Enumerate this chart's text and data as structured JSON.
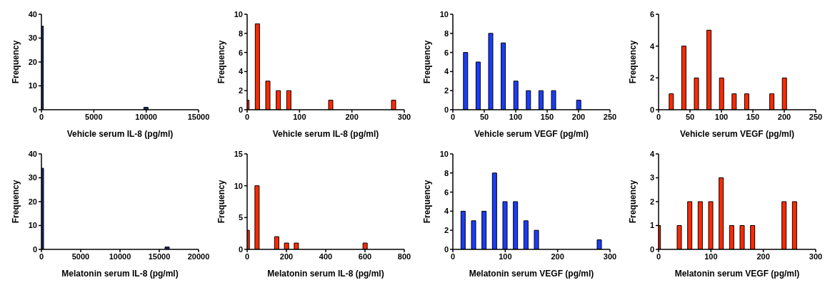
{
  "chart_data": [
    {
      "type": "bar",
      "xlabel": "Vehicle serum IL-8 (pg/ml)",
      "ylabel": "Frequency",
      "x": [
        0,
        10000
      ],
      "values": [
        35,
        1
      ],
      "color": "#1c2a6e",
      "xlim": [
        0,
        15000
      ],
      "xticks": [
        0,
        5000,
        10000,
        15000
      ],
      "ylim": [
        0,
        40
      ],
      "yticks": [
        0,
        10,
        20,
        30,
        40
      ],
      "grid": false,
      "legend": false
    },
    {
      "type": "bar",
      "xlabel": "Vehicle serum IL-8 (pg/ml)",
      "ylabel": "Frequency",
      "x": [
        0,
        20,
        40,
        60,
        80,
        160,
        280
      ],
      "values": [
        1,
        9,
        3,
        2,
        2,
        1,
        1
      ],
      "color": "#ff2a00",
      "xlim": [
        0,
        300
      ],
      "xticks": [
        0,
        100,
        200,
        300
      ],
      "ylim": [
        0,
        10
      ],
      "yticks": [
        0,
        2,
        4,
        6,
        8,
        10
      ],
      "grid": false,
      "legend": false
    },
    {
      "type": "bar",
      "xlabel": "Vehicle serum VEGF (pg/ml)",
      "ylabel": "Frequency",
      "x": [
        20,
        40,
        60,
        80,
        100,
        120,
        140,
        160,
        200
      ],
      "values": [
        6,
        5,
        8,
        7,
        3,
        2,
        2,
        2,
        1
      ],
      "color": "#1a3cff",
      "xlim": [
        0,
        250
      ],
      "xticks": [
        0,
        50,
        100,
        150,
        200,
        250
      ],
      "ylim": [
        0,
        10
      ],
      "yticks": [
        0,
        2,
        4,
        6,
        8,
        10
      ],
      "grid": false,
      "legend": false
    },
    {
      "type": "bar",
      "xlabel": "Vehicle serum VEGF (pg/ml)",
      "ylabel": "Frequency",
      "x": [
        20,
        40,
        60,
        80,
        100,
        120,
        140,
        180,
        200
      ],
      "values": [
        1,
        4,
        2,
        5,
        2,
        1,
        1,
        1,
        2
      ],
      "color": "#ff2a00",
      "xlim": [
        0,
        250
      ],
      "xticks": [
        0,
        50,
        100,
        150,
        200,
        250
      ],
      "ylim": [
        0,
        6
      ],
      "yticks": [
        0,
        2,
        4,
        6
      ],
      "grid": false,
      "legend": false
    },
    {
      "type": "bar",
      "xlabel": "Melatonin serum IL-8 (pg/ml)",
      "ylabel": "Frequency",
      "x": [
        0,
        16000
      ],
      "values": [
        34,
        1
      ],
      "color": "#1c2a6e",
      "xlim": [
        0,
        20000
      ],
      "xticks": [
        0,
        5000,
        10000,
        15000,
        20000
      ],
      "ylim": [
        0,
        40
      ],
      "yticks": [
        0,
        10,
        20,
        30,
        40
      ],
      "grid": false,
      "legend": false
    },
    {
      "type": "bar",
      "xlabel": "Melatonin serum IL-8 (pg/ml)",
      "ylabel": "Frequency",
      "x": [
        0,
        50,
        150,
        200,
        250,
        600
      ],
      "values": [
        3,
        10,
        2,
        1,
        1,
        1
      ],
      "color": "#ff2a00",
      "xlim": [
        0,
        800
      ],
      "xticks": [
        0,
        200,
        400,
        600,
        800
      ],
      "ylim": [
        0,
        15
      ],
      "yticks": [
        0,
        5,
        10,
        15
      ],
      "grid": false,
      "legend": false
    },
    {
      "type": "bar",
      "xlabel": "Melatonin serum VEGF (pg/ml)",
      "ylabel": "Frequency",
      "x": [
        20,
        40,
        60,
        80,
        100,
        120,
        140,
        160,
        280
      ],
      "values": [
        4,
        3,
        4,
        8,
        5,
        5,
        3,
        2,
        1
      ],
      "color": "#1a3cff",
      "xlim": [
        0,
        300
      ],
      "xticks": [
        0,
        100,
        200,
        300
      ],
      "ylim": [
        0,
        10
      ],
      "yticks": [
        0,
        2,
        4,
        6,
        8,
        10
      ],
      "grid": false,
      "legend": false
    },
    {
      "type": "bar",
      "xlabel": "Melatonin serum VEGF (pg/ml)",
      "ylabel": "Frequency",
      "x": [
        0,
        40,
        60,
        80,
        100,
        120,
        140,
        160,
        180,
        240,
        260
      ],
      "values": [
        1,
        1,
        2,
        2,
        2,
        3,
        1,
        1,
        1,
        2,
        2
      ],
      "color": "#ff2a00",
      "xlim": [
        0,
        300
      ],
      "xticks": [
        0,
        100,
        200,
        300
      ],
      "ylim": [
        0,
        4
      ],
      "yticks": [
        0,
        1,
        2,
        3,
        4
      ],
      "grid": false,
      "legend": false
    }
  ]
}
